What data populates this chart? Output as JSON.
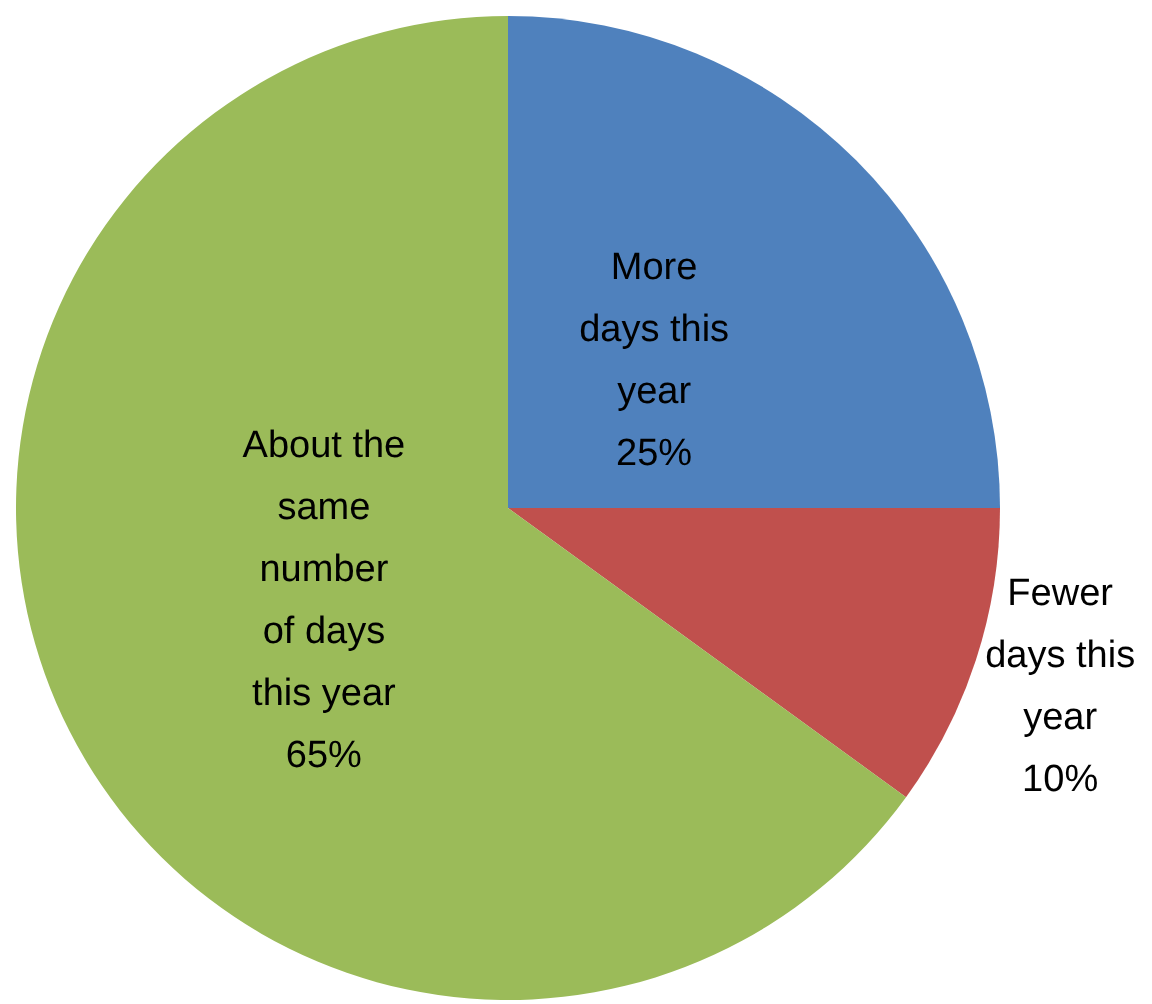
{
  "chart_data": {
    "type": "pie",
    "categories": [
      "More days this year",
      "Fewer days this year",
      "About the same number of days this year"
    ],
    "values": [
      25,
      10,
      65
    ],
    "colors": [
      "#4f81bd",
      "#c0504d",
      "#9bbb59"
    ],
    "value_labels": [
      "25%",
      "10%",
      "65%"
    ],
    "legend": false
  }
}
